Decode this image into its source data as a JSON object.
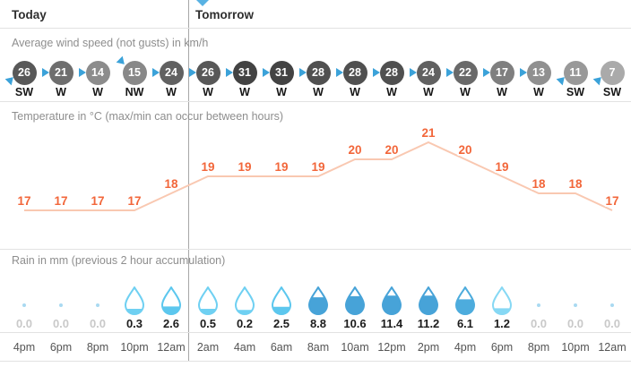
{
  "header": {
    "today": "Today",
    "tomorrow": "Tomorrow"
  },
  "sections": {
    "wind": "Average wind speed (not gusts) in km/h",
    "temperature": "Temperature in °C (max/min can occur between hours)",
    "rain": "Rain in mm (previous 2 hour accumulation)"
  },
  "time_axis": [
    "4pm",
    "6pm",
    "8pm",
    "10pm",
    "12am",
    "2am",
    "4am",
    "6am",
    "8am",
    "10am",
    "12pm",
    "2pm",
    "4pm",
    "6pm",
    "8pm",
    "10pm",
    "12am"
  ],
  "today_column_count": 5,
  "chart_data": [
    {
      "type": "line",
      "name": "wind_speed",
      "title": "Average wind speed (not gusts) in km/h",
      "x": [
        "4pm",
        "6pm",
        "8pm",
        "10pm",
        "12am",
        "2am",
        "4am",
        "6am",
        "8am",
        "10am",
        "12pm",
        "2pm",
        "4pm",
        "6pm",
        "8pm",
        "10pm",
        "12am"
      ],
      "values": [
        26,
        21,
        14,
        15,
        24,
        26,
        31,
        31,
        28,
        28,
        28,
        24,
        22,
        17,
        13,
        11,
        7
      ],
      "directions": [
        "SW",
        "W",
        "W",
        "NW",
        "W",
        "W",
        "W",
        "W",
        "W",
        "W",
        "W",
        "W",
        "W",
        "W",
        "W",
        "SW",
        "SW"
      ]
    },
    {
      "type": "line",
      "name": "temperature",
      "title": "Temperature in °C (max/min can occur between hours)",
      "x": [
        "4pm",
        "6pm",
        "8pm",
        "10pm",
        "12am",
        "2am",
        "4am",
        "6am",
        "8am",
        "10am",
        "12pm",
        "2pm",
        "4pm",
        "6pm",
        "8pm",
        "10pm",
        "12am"
      ],
      "values": [
        17,
        17,
        17,
        17,
        18,
        19,
        19,
        19,
        19,
        20,
        20,
        21,
        20,
        19,
        18,
        18,
        17
      ],
      "ylim": [
        16,
        22
      ],
      "grid": false,
      "legend": false
    },
    {
      "type": "bar",
      "name": "rain",
      "title": "Rain in mm (previous 2 hour accumulation)",
      "x": [
        "4pm",
        "6pm",
        "8pm",
        "10pm",
        "12am",
        "2am",
        "4am",
        "6am",
        "8am",
        "10am",
        "12pm",
        "2pm",
        "4pm",
        "6pm",
        "8pm",
        "10pm",
        "12am"
      ],
      "values": [
        0.0,
        0.0,
        0.0,
        0.3,
        2.6,
        0.5,
        0.2,
        2.5,
        8.8,
        10.6,
        11.4,
        11.2,
        6.1,
        1.2,
        0.0,
        0.0,
        0.0
      ],
      "labels": [
        "0.0",
        "0.0",
        "0.0",
        "0.3",
        "2.6",
        "0.5",
        "0.2",
        "2.5",
        "8.8",
        "10.6",
        "11.4",
        "11.2",
        "6.1",
        "1.2",
        "0.0",
        "0.0",
        "0.0"
      ],
      "drop_fill_pct": [
        0,
        0,
        0,
        22,
        30,
        22,
        18,
        29,
        62,
        66,
        68,
        68,
        55,
        24,
        0,
        0,
        0
      ],
      "drop_colors": [
        null,
        null,
        null,
        "#6fd0f2",
        "#5cc7ee",
        "#6fd0f2",
        "#6fd0f2",
        "#5cc7ee",
        "#47a3d8",
        "#47a3d8",
        "#47a3d8",
        "#47a3d8",
        "#4dacdd",
        "#86d8f4",
        null,
        null,
        null
      ]
    }
  ],
  "colors": {
    "temp_label": "#f2663a",
    "temp_line": "#f9c8b1",
    "wind_arrow": "#3ba2d9",
    "marker": "#58b2e3",
    "rain_zero_dot": "#a9d9f1",
    "rain_zero_text": "#c9c9c9",
    "value_text": "#1c1c1c",
    "divider": "#e2e2e2",
    "day_divider": "#a6a6a6",
    "section_label": "#8e8e8e",
    "time_label": "#545454",
    "header_text": "#2e2e2e"
  }
}
